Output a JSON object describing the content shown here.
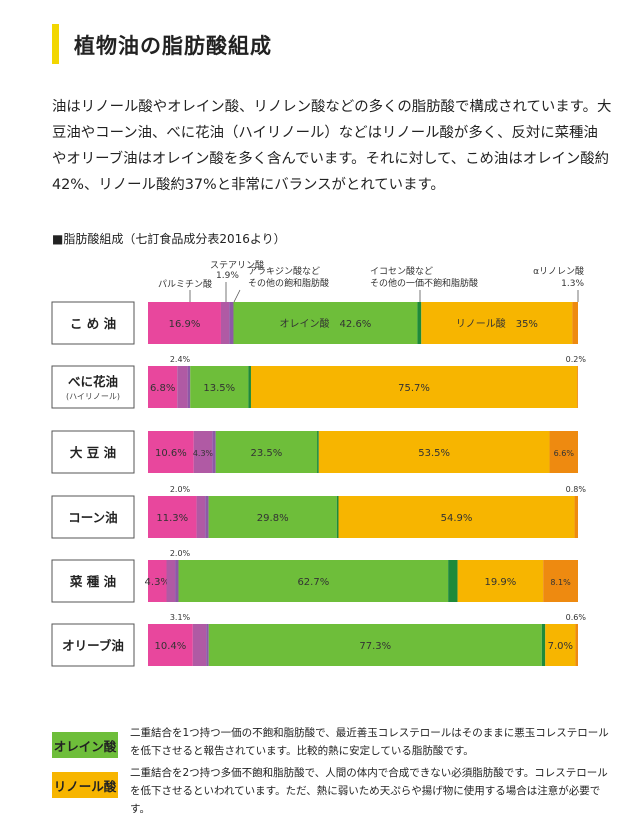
{
  "heading": "植物油の脂肪酸組成",
  "intro": "油はリノール酸やオレイン酸、リノレン酸などの多くの脂肪酸で構成されています。大豆油やコーン油、べに花油（ハイリノール）などはリノール酸が多く、反対に菜種油やオリーブ油はオレイン酸を多く含んでいます。それに対して、こめ油はオレイン酸約42%、リノール酸約37%と非常にバランスがとれています。",
  "table_title": "■脂肪酸組成（七訂食品成分表2016より）",
  "colors": {
    "palmitic": "#e8479d",
    "stearic": "#b05aa4",
    "other_sat": "#8e58a6",
    "oleic": "#6ebe3a",
    "other_mono": "#1e8a3a",
    "linoleic": "#f7b500",
    "linolenic": "#ee8a10"
  },
  "chart_data": {
    "type": "bar",
    "orientation": "horizontal-stacked-100%",
    "title": "脂肪酸組成",
    "components": [
      "パルミチン酸",
      "ステアリン酸",
      "アラキジン酸など その他の飽和脂肪酸",
      "オレイン酸",
      "イコセン酸など その他の一価不飽和脂肪酸",
      "リノール酸",
      "αリノレン酸"
    ],
    "header_labels": {
      "palmitic": "パルミチン酸",
      "stearic": "ステアリン酸",
      "stearic_value": "1.9%",
      "other_sat_1": "アラキジン酸など",
      "other_sat_2": "その他の飽和脂肪酸",
      "other_mono_1": "イコセン酸など",
      "other_mono_2": "その他の一価不飽和脂肪酸",
      "linolenic": "αリノレン酸",
      "linolenic_value": "1.3%"
    },
    "series": [
      {
        "name": "こ め 油",
        "sub": "",
        "segments": [
          {
            "key": "palmitic",
            "value": 16.9,
            "label": "16.9%"
          },
          {
            "key": "stearic",
            "value": 1.9,
            "label": ""
          },
          {
            "key": "other_sat",
            "value": 1.0,
            "label": ""
          },
          {
            "key": "oleic",
            "value": 42.6,
            "label": "オレイン酸　42.6%"
          },
          {
            "key": "other_mono",
            "value": 0.9,
            "label": ""
          },
          {
            "key": "linoleic",
            "value": 35.0,
            "label": "リノール酸　35%"
          },
          {
            "key": "linolenic",
            "value": 1.3,
            "label": ""
          }
        ],
        "above_left": "",
        "above_right": ""
      },
      {
        "name": "べに花油",
        "sub": "(ハイリノール)",
        "segments": [
          {
            "key": "palmitic",
            "value": 6.8,
            "label": "6.8%"
          },
          {
            "key": "stearic",
            "value": 2.4,
            "label": ""
          },
          {
            "key": "other_sat",
            "value": 0.6,
            "label": ""
          },
          {
            "key": "oleic",
            "value": 13.5,
            "label": "13.5%"
          },
          {
            "key": "other_mono",
            "value": 0.6,
            "label": ""
          },
          {
            "key": "linoleic",
            "value": 75.7,
            "label": "75.7%"
          },
          {
            "key": "linolenic",
            "value": 0.2,
            "label": ""
          }
        ],
        "above_left": "2.4%",
        "above_right": "0.2%"
      },
      {
        "name": "大 豆 油",
        "sub": "",
        "segments": [
          {
            "key": "palmitic",
            "value": 10.6,
            "label": "10.6%"
          },
          {
            "key": "stearic",
            "value": 4.3,
            "label": "4.3%"
          },
          {
            "key": "other_sat",
            "value": 0.8,
            "label": ""
          },
          {
            "key": "oleic",
            "value": 23.5,
            "label": "23.5%"
          },
          {
            "key": "other_mono",
            "value": 0.4,
            "label": ""
          },
          {
            "key": "linoleic",
            "value": 53.5,
            "label": "53.5%"
          },
          {
            "key": "linolenic",
            "value": 6.6,
            "label": "6.6%"
          }
        ],
        "above_left": "",
        "above_right": ""
      },
      {
        "name": "コーン油",
        "sub": "",
        "segments": [
          {
            "key": "palmitic",
            "value": 11.3,
            "label": "11.3%"
          },
          {
            "key": "stearic",
            "value": 2.0,
            "label": ""
          },
          {
            "key": "other_sat",
            "value": 0.8,
            "label": ""
          },
          {
            "key": "oleic",
            "value": 29.8,
            "label": "29.8%"
          },
          {
            "key": "other_mono",
            "value": 0.4,
            "label": ""
          },
          {
            "key": "linoleic",
            "value": 54.9,
            "label": "54.9%"
          },
          {
            "key": "linolenic",
            "value": 0.8,
            "label": ""
          }
        ],
        "above_left": "2.0%",
        "above_right": "0.8%"
      },
      {
        "name": "菜 種 油",
        "sub": "",
        "segments": [
          {
            "key": "palmitic",
            "value": 4.3,
            "label": "4.3%"
          },
          {
            "key": "stearic",
            "value": 2.0,
            "label": ""
          },
          {
            "key": "other_sat",
            "value": 0.8,
            "label": ""
          },
          {
            "key": "oleic",
            "value": 62.7,
            "label": "62.7%"
          },
          {
            "key": "other_mono",
            "value": 2.2,
            "label": ""
          },
          {
            "key": "linoleic",
            "value": 19.9,
            "label": "19.9%"
          },
          {
            "key": "linolenic",
            "value": 8.1,
            "label": "8.1%"
          }
        ],
        "above_left": "2.0%",
        "above_right": ""
      },
      {
        "name": "オリーブ油",
        "sub": "",
        "segments": [
          {
            "key": "palmitic",
            "value": 10.4,
            "label": "10.4%"
          },
          {
            "key": "stearic",
            "value": 3.1,
            "label": ""
          },
          {
            "key": "other_sat",
            "value": 0.6,
            "label": ""
          },
          {
            "key": "oleic",
            "value": 77.3,
            "label": "77.3%"
          },
          {
            "key": "other_mono",
            "value": 0.8,
            "label": ""
          },
          {
            "key": "linoleic",
            "value": 7.0,
            "label": "7.0%"
          },
          {
            "key": "linolenic",
            "value": 0.6,
            "label": ""
          }
        ],
        "above_left": "3.1%",
        "above_right": "0.6%"
      }
    ]
  },
  "legend": [
    {
      "label": "オレイン酸",
      "color": "#6ebe3a",
      "text": "二重結合を1つ持つ一価の不飽和脂肪酸で、最近善玉コレステロールはそのままに悪玉コレステロールを低下させると報告されています。比較的熱に安定している脂肪酸です。"
    },
    {
      "label": "リノール酸",
      "color": "#f7b500",
      "text": "二重結合を2つ持つ多価不飽和脂肪酸で、人間の体内で合成できない必須脂肪酸です。コレステロールを低下させるといわれています。ただ、熱に弱いため天ぷらや揚げ物に使用する場合は注意が必要です。"
    }
  ]
}
